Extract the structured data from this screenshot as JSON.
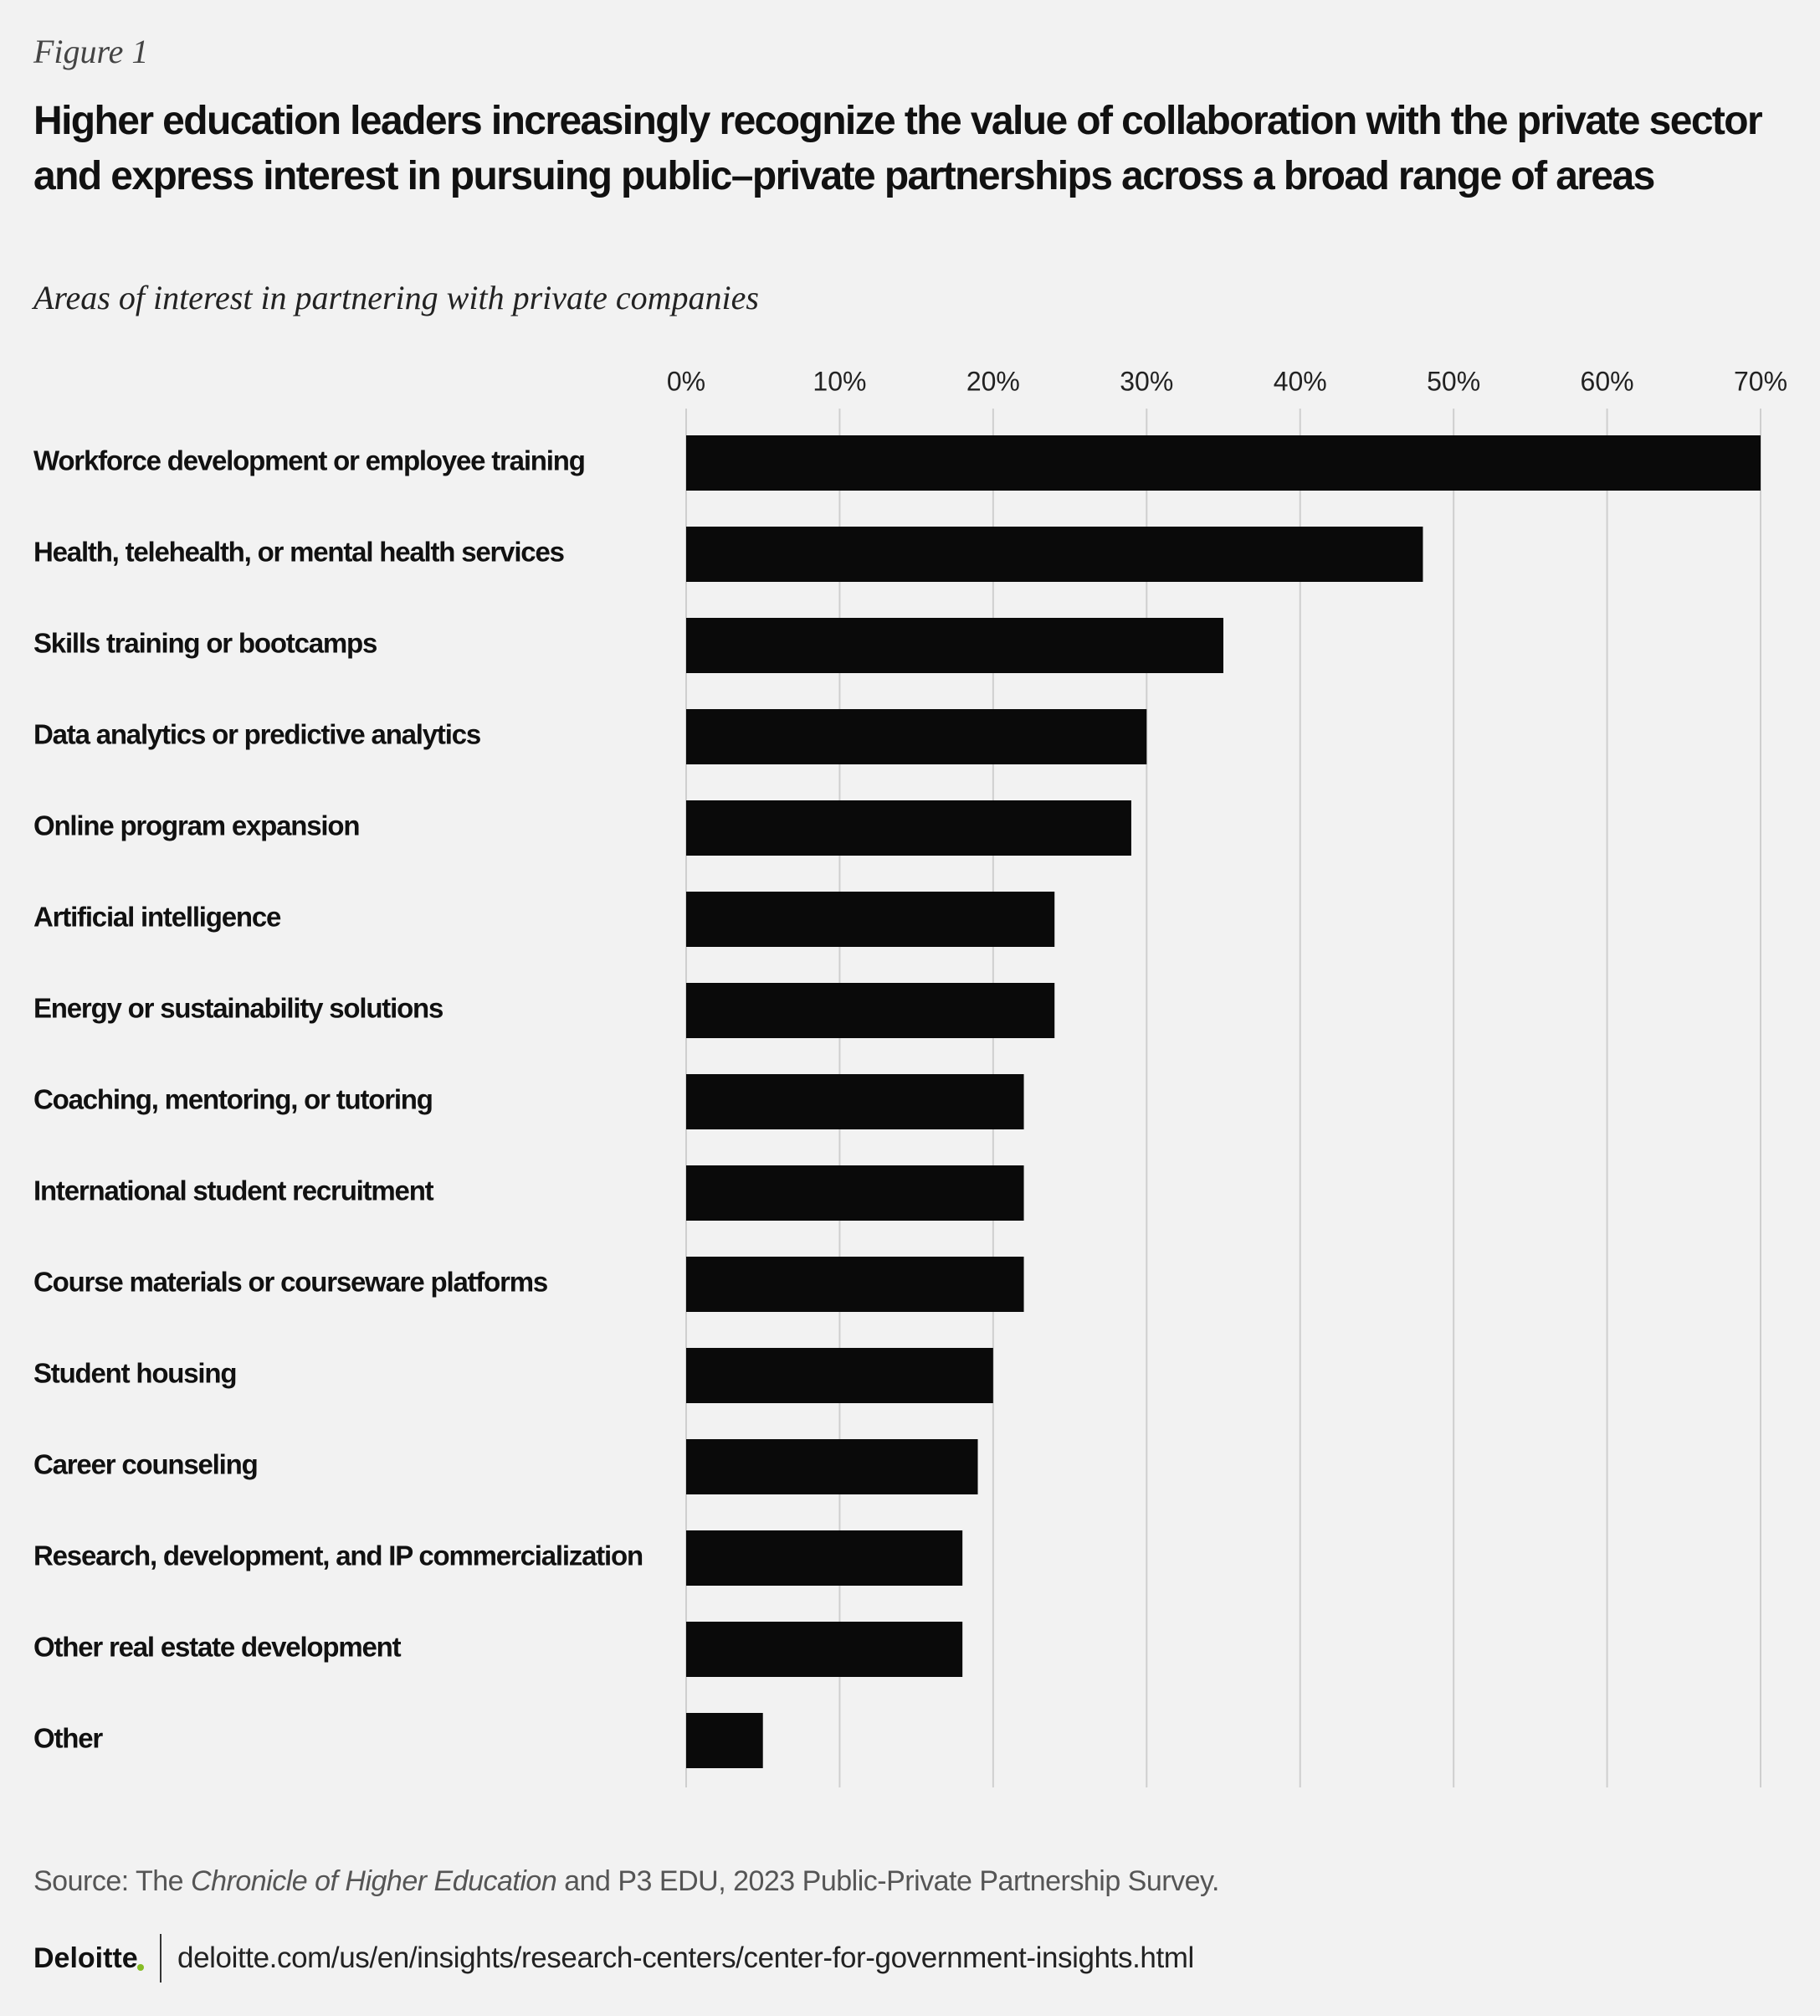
{
  "figure_label": "Figure 1",
  "title": "Higher education leaders increasingly recognize the value of collaboration with the private sector and express interest in pursuing public–private partnerships across a broad range of areas",
  "source": {
    "prefix": "Source: The ",
    "italic": "Chronicle of Higher Education",
    "suffix": " and P3 EDU, 2023 Public-Private Partnership Survey."
  },
  "footer": {
    "logo": "Deloitte",
    "url": "deloitte.com/us/en/insights/research-centers/center-for-government-insights.html"
  },
  "chart_data": {
    "type": "hbar",
    "subtitle": "Areas of interest in partnering with private companies",
    "categories": [
      "Workforce development or employee training",
      "Health, telehealth, or mental health services",
      "Skills training or bootcamps",
      "Data analytics or predictive analytics",
      "Online program expansion",
      "Artificial intelligence",
      "Energy or sustainability solutions",
      "Coaching, mentoring, or tutoring",
      "International student recruitment",
      "Course materials or courseware platforms",
      "Student housing",
      "Career counseling",
      "Research, development, and IP commercialization",
      "Other real estate development",
      "Other"
    ],
    "values": [
      70,
      48,
      35,
      30,
      29,
      24,
      24,
      22,
      22,
      22,
      20,
      19,
      18,
      18,
      5
    ],
    "color": "#0a0a0a",
    "xlim": [
      0,
      70
    ],
    "xticks": [
      {
        "value": 0,
        "label": "0%"
      },
      {
        "value": 10,
        "label": "10%"
      },
      {
        "value": 20,
        "label": "20%"
      },
      {
        "value": 30,
        "label": "30%"
      },
      {
        "value": 40,
        "label": "40%"
      },
      {
        "value": 50,
        "label": "50%"
      },
      {
        "value": 60,
        "label": "60%"
      },
      {
        "value": 70,
        "label": "70%"
      }
    ],
    "grid": true
  }
}
